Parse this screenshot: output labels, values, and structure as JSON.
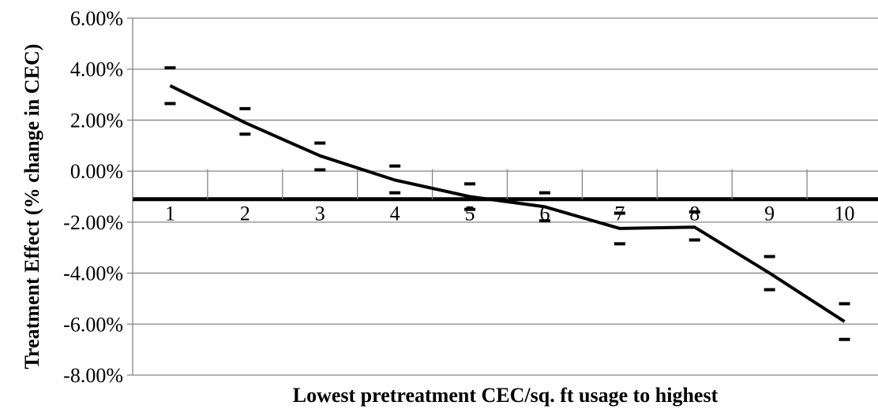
{
  "chart_data": {
    "type": "line",
    "title": "",
    "xlabel": "Lowest pretreatment CEC/sq. ft usage to highest",
    "ylabel": "Treatment Effect (% change in CEC)",
    "categories": [
      "1",
      "2",
      "3",
      "4",
      "5",
      "6",
      "7",
      "8",
      "9",
      "10"
    ],
    "y_ticks": [
      "6.00%",
      "4.00%",
      "2.00%",
      "0.00%",
      "-2.00%",
      "-4.00%",
      "-6.00%",
      "-8.00%"
    ],
    "ylim": [
      -8.0,
      6.0
    ],
    "y_unit": "percent",
    "x_axis_crosses_at": -1.1,
    "grid": "horizontal",
    "legend": "none",
    "series": [
      {
        "values": [
          3.35,
          1.9,
          0.6,
          -0.35,
          -1.0,
          -1.4,
          -2.25,
          -2.2,
          -4.0,
          -5.9
        ]
      }
    ],
    "error_bars": {
      "upper": [
        4.05,
        2.45,
        1.1,
        0.2,
        -0.5,
        -0.85,
        -1.65,
        -1.6,
        -3.35,
        -5.2
      ],
      "lower": [
        2.65,
        1.45,
        0.05,
        -0.85,
        -1.5,
        -1.95,
        -2.85,
        -2.7,
        -4.65,
        -6.6
      ]
    },
    "colors": {
      "line": "#000000",
      "grid": "#868686",
      "axis": "#000000"
    }
  }
}
